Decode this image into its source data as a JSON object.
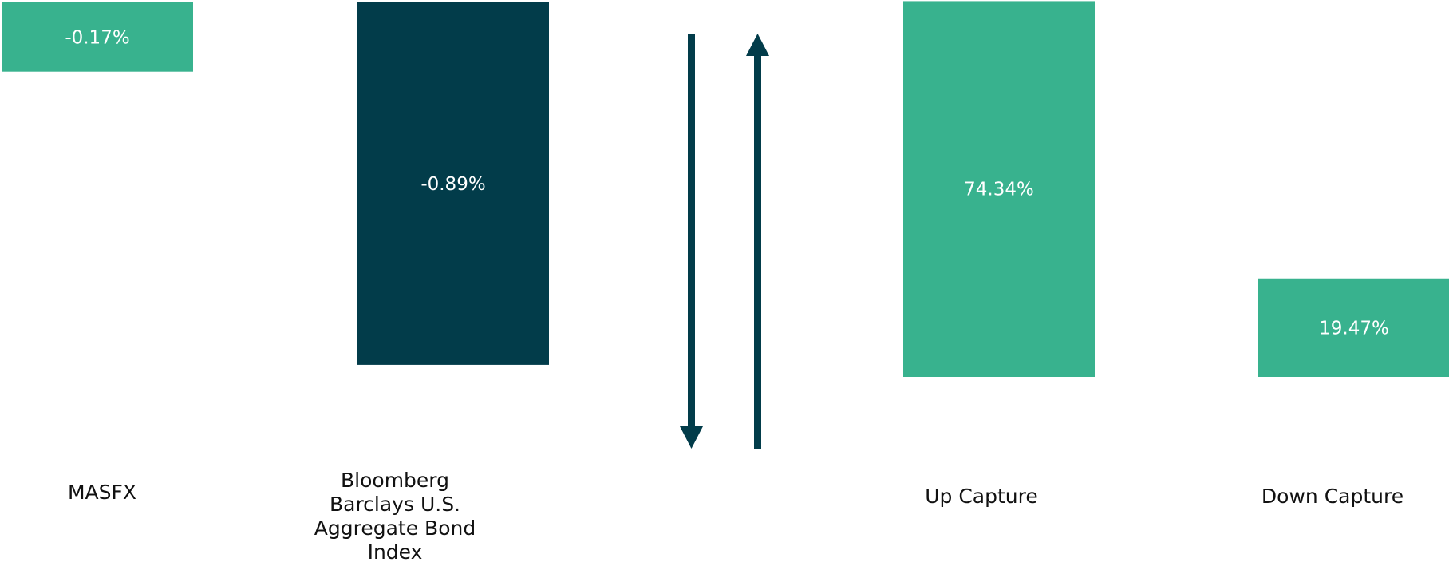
{
  "chart_data": [
    {
      "type": "bar",
      "categories": [
        "MASFX",
        "Bloomberg Barclays U.S. Aggregate Bond Index"
      ],
      "values": [
        -0.17,
        -0.89
      ],
      "data_labels": [
        "-0.17%",
        "-0.89%"
      ],
      "colors": [
        "#38b28e",
        "#023c4a"
      ],
      "ylim": [
        -1.0,
        0
      ],
      "grid": false,
      "legend": "none"
    },
    {
      "type": "bar",
      "categories": [
        "Up Capture",
        "Down Capture"
      ],
      "values": [
        74.34,
        19.47
      ],
      "data_labels": [
        "74.34%",
        "19.47%"
      ],
      "colors": [
        "#38b28e",
        "#38b28e"
      ],
      "ylim": [
        0,
        100
      ],
      "grid": false,
      "legend": "none"
    }
  ],
  "labels": {
    "masfx": "MASFX",
    "bbagg_line1": "Bloomberg",
    "bbagg_line2": "Barclays U.S.",
    "bbagg_line3": "Aggregate Bond",
    "bbagg_line4": "Index",
    "up_capture": "Up Capture",
    "down_capture": "Down Capture"
  },
  "icons": {
    "down_arrow": "arrow-down-icon",
    "up_arrow": "arrow-up-icon"
  },
  "colors": {
    "green": "#38b28e",
    "dark_teal": "#023c4a",
    "label_text": "#111111",
    "bar_text": "#ffffff"
  }
}
